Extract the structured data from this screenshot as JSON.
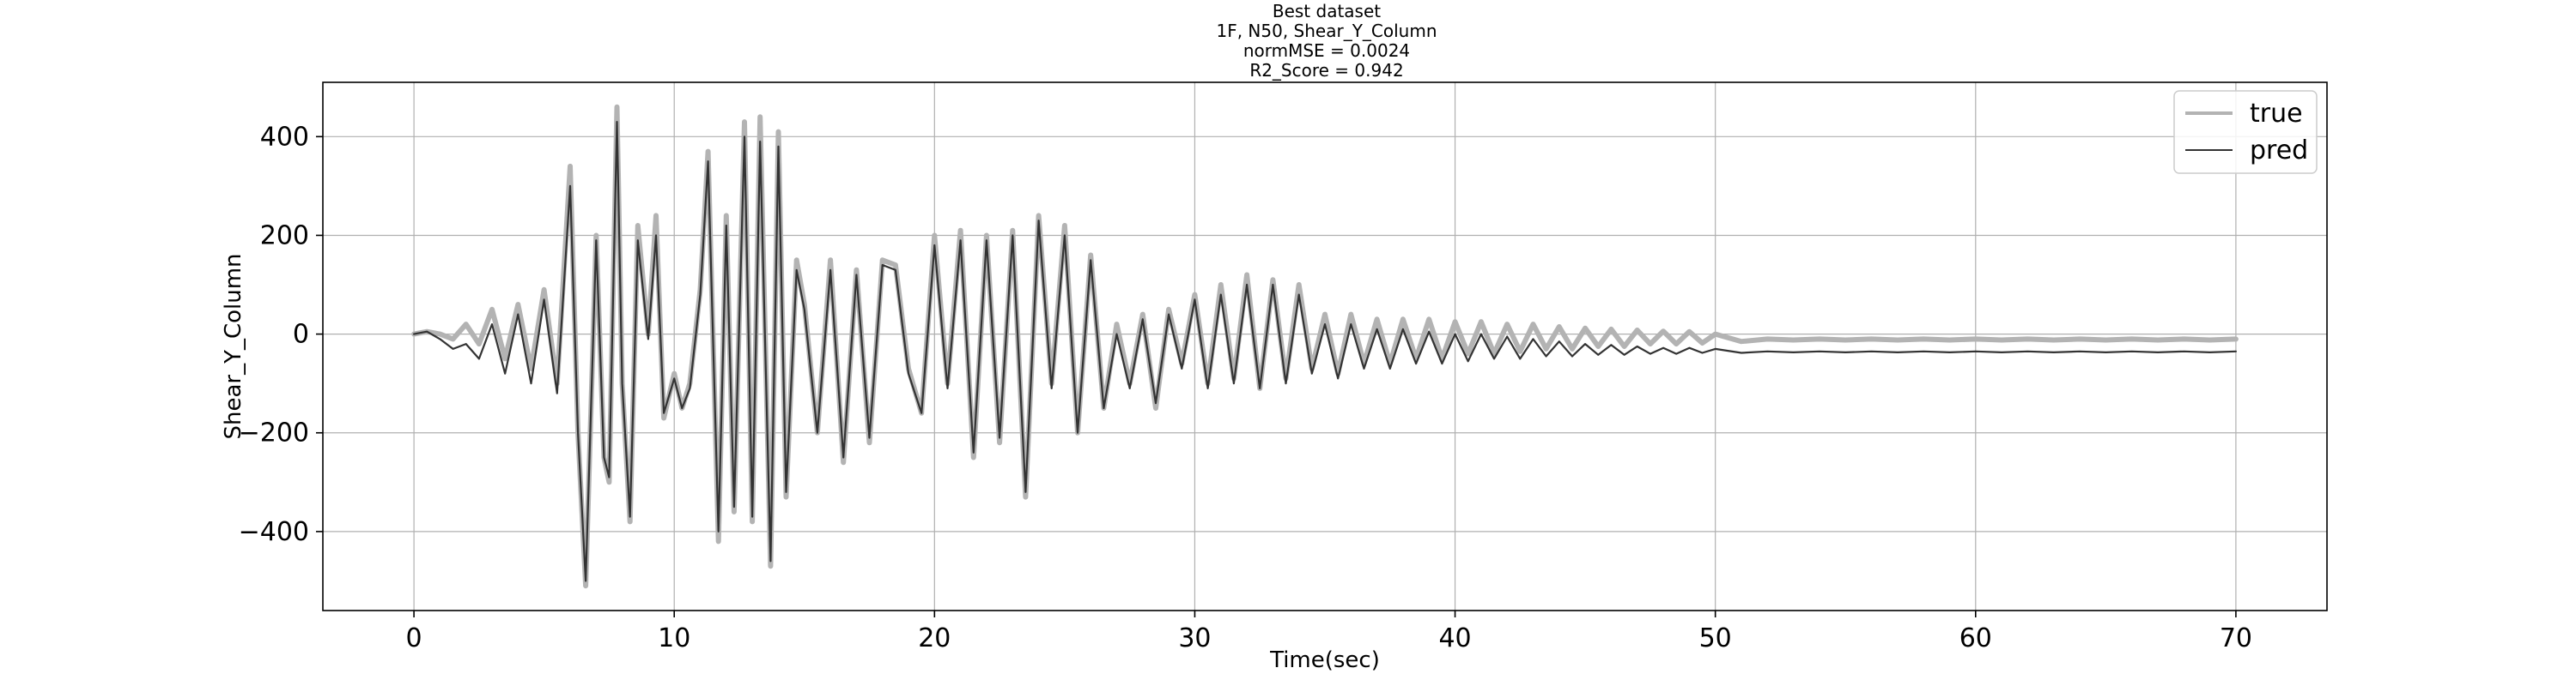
{
  "chart_data": {
    "type": "line",
    "title_lines": [
      "Best dataset",
      "1F, N50, Shear_Y_Column",
      "normMSE = 0.0024",
      "R2_Score = 0.942"
    ],
    "xlabel": "Time(sec)",
    "ylabel": "Shear_Y_Column",
    "xlim": [
      -3.5,
      73.5
    ],
    "ylim": [
      -560,
      510
    ],
    "xticks": [
      0,
      10,
      20,
      30,
      40,
      50,
      60,
      70
    ],
    "yticks": [
      -400,
      -200,
      0,
      200,
      400
    ],
    "ytick_labels": [
      "−400",
      "−200",
      "0",
      "200",
      "400"
    ],
    "grid": true,
    "legend_position": "top-right",
    "series": [
      {
        "name": "true",
        "color": "#b3b3b3",
        "x": [
          0,
          0.5,
          1,
          1.5,
          2,
          2.5,
          3,
          3.5,
          4,
          4.5,
          5,
          5.5,
          6,
          6.3,
          6.6,
          7,
          7.3,
          7.5,
          7.8,
          8,
          8.3,
          8.6,
          9,
          9.3,
          9.6,
          10,
          10.3,
          10.6,
          11,
          11.3,
          11.7,
          12,
          12.3,
          12.7,
          13,
          13.3,
          13.7,
          14,
          14.3,
          14.7,
          15,
          15.5,
          16,
          16.5,
          17,
          17.5,
          18,
          18.5,
          19,
          19.5,
          20,
          20.5,
          21,
          21.5,
          22,
          22.5,
          23,
          23.5,
          24,
          24.5,
          25,
          25.5,
          26,
          26.5,
          27,
          27.5,
          28,
          28.5,
          29,
          29.5,
          30,
          30.5,
          31,
          31.5,
          32,
          32.5,
          33,
          33.5,
          34,
          34.5,
          35,
          35.5,
          36,
          36.5,
          37,
          37.5,
          38,
          38.5,
          39,
          39.5,
          40,
          40.5,
          41,
          41.5,
          42,
          42.5,
          43,
          43.5,
          44,
          44.5,
          45,
          45.5,
          46,
          46.5,
          47,
          47.5,
          48,
          48.5,
          49,
          49.5,
          50,
          51,
          52,
          53,
          54,
          55,
          56,
          57,
          58,
          59,
          60,
          61,
          62,
          63,
          64,
          65,
          66,
          67,
          68,
          69,
          70
        ],
        "y": [
          0,
          5,
          0,
          -10,
          20,
          -20,
          50,
          -50,
          60,
          -70,
          90,
          -100,
          340,
          -200,
          -510,
          200,
          -250,
          -300,
          460,
          -100,
          -380,
          220,
          0,
          240,
          -170,
          -80,
          -150,
          -100,
          90,
          370,
          -420,
          240,
          -360,
          430,
          -380,
          440,
          -470,
          410,
          -330,
          150,
          60,
          -200,
          150,
          -260,
          130,
          -220,
          150,
          140,
          -70,
          -160,
          200,
          -100,
          210,
          -250,
          200,
          -220,
          210,
          -330,
          240,
          -100,
          220,
          -200,
          160,
          -150,
          20,
          -100,
          40,
          -150,
          50,
          -60,
          80,
          -100,
          100,
          -90,
          120,
          -110,
          110,
          -90,
          100,
          -70,
          40,
          -80,
          40,
          -60,
          30,
          -60,
          30,
          -50,
          30,
          -50,
          25,
          -40,
          25,
          -40,
          20,
          -35,
          20,
          -30,
          15,
          -30,
          12,
          -25,
          10,
          -25,
          8,
          -20,
          6,
          -20,
          5,
          -18,
          0,
          -15,
          -10,
          -12,
          -10,
          -12,
          -10,
          -12,
          -10,
          -12,
          -10,
          -12,
          -10,
          -12,
          -10,
          -12,
          -10,
          -12,
          -10,
          -12,
          -10
        ]
      },
      {
        "name": "pred",
        "color": "#333333",
        "x": [
          0,
          0.5,
          1,
          1.5,
          2,
          2.5,
          3,
          3.5,
          4,
          4.5,
          5,
          5.5,
          6,
          6.3,
          6.6,
          7,
          7.3,
          7.5,
          7.8,
          8,
          8.3,
          8.6,
          9,
          9.3,
          9.6,
          10,
          10.3,
          10.6,
          11,
          11.3,
          11.7,
          12,
          12.3,
          12.7,
          13,
          13.3,
          13.7,
          14,
          14.3,
          14.7,
          15,
          15.5,
          16,
          16.5,
          17,
          17.5,
          18,
          18.5,
          19,
          19.5,
          20,
          20.5,
          21,
          21.5,
          22,
          22.5,
          23,
          23.5,
          24,
          24.5,
          25,
          25.5,
          26,
          26.5,
          27,
          27.5,
          28,
          28.5,
          29,
          29.5,
          30,
          30.5,
          31,
          31.5,
          32,
          32.5,
          33,
          33.5,
          34,
          34.5,
          35,
          35.5,
          36,
          36.5,
          37,
          37.5,
          38,
          38.5,
          39,
          39.5,
          40,
          40.5,
          41,
          41.5,
          42,
          42.5,
          43,
          43.5,
          44,
          44.5,
          45,
          45.5,
          46,
          46.5,
          47,
          47.5,
          48,
          48.5,
          49,
          49.5,
          50,
          51,
          52,
          53,
          54,
          55,
          56,
          57,
          58,
          59,
          60,
          61,
          62,
          63,
          64,
          65,
          66,
          67,
          68,
          69,
          70
        ],
        "y": [
          0,
          5,
          -10,
          -30,
          -20,
          -50,
          20,
          -80,
          40,
          -100,
          70,
          -120,
          300,
          -200,
          -500,
          190,
          -250,
          -290,
          430,
          -100,
          -370,
          190,
          -10,
          200,
          -160,
          -90,
          -150,
          -110,
          80,
          350,
          -400,
          220,
          -350,
          400,
          -370,
          390,
          -460,
          380,
          -320,
          130,
          50,
          -200,
          130,
          -250,
          120,
          -210,
          140,
          130,
          -80,
          -160,
          180,
          -110,
          190,
          -240,
          190,
          -210,
          200,
          -320,
          230,
          -110,
          200,
          -200,
          150,
          -150,
          0,
          -110,
          30,
          -140,
          40,
          -70,
          70,
          -110,
          80,
          -100,
          100,
          -110,
          100,
          -100,
          80,
          -80,
          20,
          -90,
          20,
          -70,
          10,
          -70,
          10,
          -60,
          5,
          -60,
          0,
          -55,
          0,
          -50,
          -5,
          -50,
          -10,
          -45,
          -15,
          -45,
          -20,
          -42,
          -22,
          -42,
          -25,
          -40,
          -28,
          -40,
          -28,
          -38,
          -30,
          -38,
          -35,
          -37,
          -35,
          -37,
          -35,
          -37,
          -35,
          -37,
          -35,
          -37,
          -35,
          -37,
          -35,
          -37,
          -35,
          -37,
          -35,
          -37,
          -35
        ]
      }
    ]
  }
}
